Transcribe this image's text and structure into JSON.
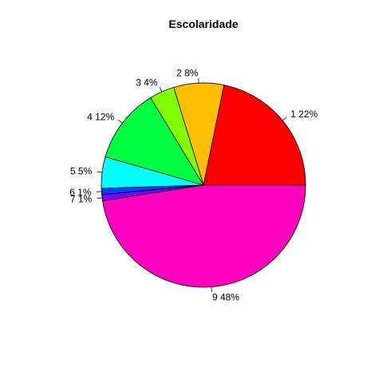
{
  "chart_data": {
    "type": "pie",
    "title": "Escolaridade",
    "slices": [
      {
        "category": "1",
        "percent": 22,
        "label": "1 22%",
        "color": "#FF0000"
      },
      {
        "category": "2",
        "percent": 8,
        "label": "2 8%",
        "color": "#FFBF00"
      },
      {
        "category": "3",
        "percent": 4,
        "label": "3 4%",
        "color": "#80FF00"
      },
      {
        "category": "4",
        "percent": 12,
        "label": "4 12%",
        "color": "#00FF40"
      },
      {
        "category": "5",
        "percent": 5,
        "label": "5 5%",
        "color": "#00FFFF"
      },
      {
        "category": "6",
        "percent": 1,
        "label": "6 1%",
        "color": "#0040FF"
      },
      {
        "category": "7",
        "percent": 1,
        "label": "7 1%",
        "color": "#8000FF"
      },
      {
        "category": "9",
        "percent": 48,
        "label": "9 48%",
        "color": "#FF00BF"
      }
    ],
    "start_angle_deg": 0,
    "direction": "counterclockwise"
  }
}
